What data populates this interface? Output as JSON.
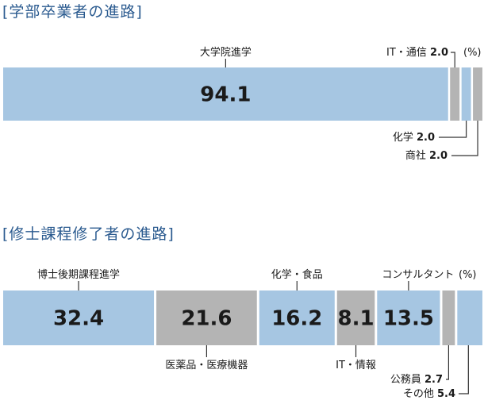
{
  "unit": "(%)",
  "colors": {
    "blue": "#a6c6e2",
    "gray": "#b4b4b4",
    "title": "#2a5a8f",
    "line": "#333333"
  },
  "chart_data": [
    {
      "type": "bar",
      "stacked": true,
      "orientation": "horizontal",
      "title": "[学部卒業者の進路]",
      "unit": "(%)",
      "series": [
        {
          "name": "大学院進学",
          "value": 94.1,
          "color": "blue",
          "label_shown": true
        },
        {
          "name": "IT・通信",
          "value": 2.0,
          "color": "gray",
          "label_shown": false
        },
        {
          "name": "化学",
          "value": 2.0,
          "color": "blue",
          "label_shown": false
        },
        {
          "name": "商社",
          "value": 2.0,
          "color": "gray",
          "label_shown": false
        }
      ]
    },
    {
      "type": "bar",
      "stacked": true,
      "orientation": "horizontal",
      "title": "[修士課程修了者の進路]",
      "unit": "(%)",
      "series": [
        {
          "name": "博士後期課程進学",
          "value": 32.4,
          "color": "blue",
          "label_shown": true
        },
        {
          "name": "医薬品・医療機器",
          "value": 21.6,
          "color": "gray",
          "label_shown": true
        },
        {
          "name": "化学・食品",
          "value": 16.2,
          "color": "blue",
          "label_shown": true
        },
        {
          "name": "IT・情報",
          "value": 8.1,
          "color": "gray",
          "label_shown": true
        },
        {
          "name": "コンサルタント",
          "value": 13.5,
          "color": "blue",
          "label_shown": true
        },
        {
          "name": "公務員",
          "value": 2.7,
          "color": "gray",
          "label_shown": false
        },
        {
          "name": "その他",
          "value": 5.4,
          "color": "blue",
          "label_shown": false
        }
      ]
    }
  ]
}
